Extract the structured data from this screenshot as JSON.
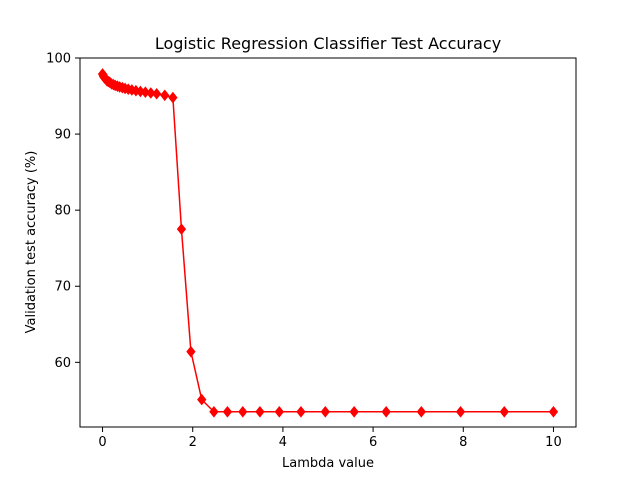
{
  "chart_data": {
    "type": "line",
    "title": "Logistic Regression Classifier Test Accuracy",
    "xlabel": "Lambda value",
    "ylabel": "Validation test accuracy (%)",
    "xlim": [
      -0.5,
      10.5
    ],
    "ylim": [
      51.5,
      100
    ],
    "xticks": [
      0,
      2,
      4,
      6,
      8,
      10
    ],
    "yticks": [
      60,
      70,
      80,
      90,
      100
    ],
    "grid": false,
    "marker": "diamond",
    "line_color": "#ff0000",
    "series": [
      {
        "x": [
          0.0,
          0.01,
          0.02,
          0.04,
          0.06,
          0.08,
          0.1,
          0.13,
          0.16,
          0.2,
          0.24,
          0.28,
          0.33,
          0.38,
          0.44,
          0.5,
          0.57,
          0.65,
          0.74,
          0.84,
          0.95,
          1.07,
          1.2,
          1.38,
          1.56,
          1.75,
          1.96,
          2.2,
          2.47,
          2.77,
          3.11,
          3.49,
          3.92,
          4.4,
          4.94,
          5.58,
          6.29,
          7.07,
          7.94,
          8.91,
          10.0
        ],
        "y": [
          97.9,
          97.8,
          97.6,
          97.4,
          97.3,
          97.2,
          97.0,
          96.9,
          96.8,
          96.6,
          96.5,
          96.4,
          96.3,
          96.2,
          96.1,
          96.0,
          95.9,
          95.8,
          95.7,
          95.6,
          95.5,
          95.4,
          95.3,
          95.1,
          94.8,
          77.5,
          61.4,
          55.1,
          53.5,
          53.5,
          53.5,
          53.5,
          53.5,
          53.5,
          53.5,
          53.5,
          53.5,
          53.5,
          53.5,
          53.5,
          53.5
        ]
      }
    ]
  }
}
